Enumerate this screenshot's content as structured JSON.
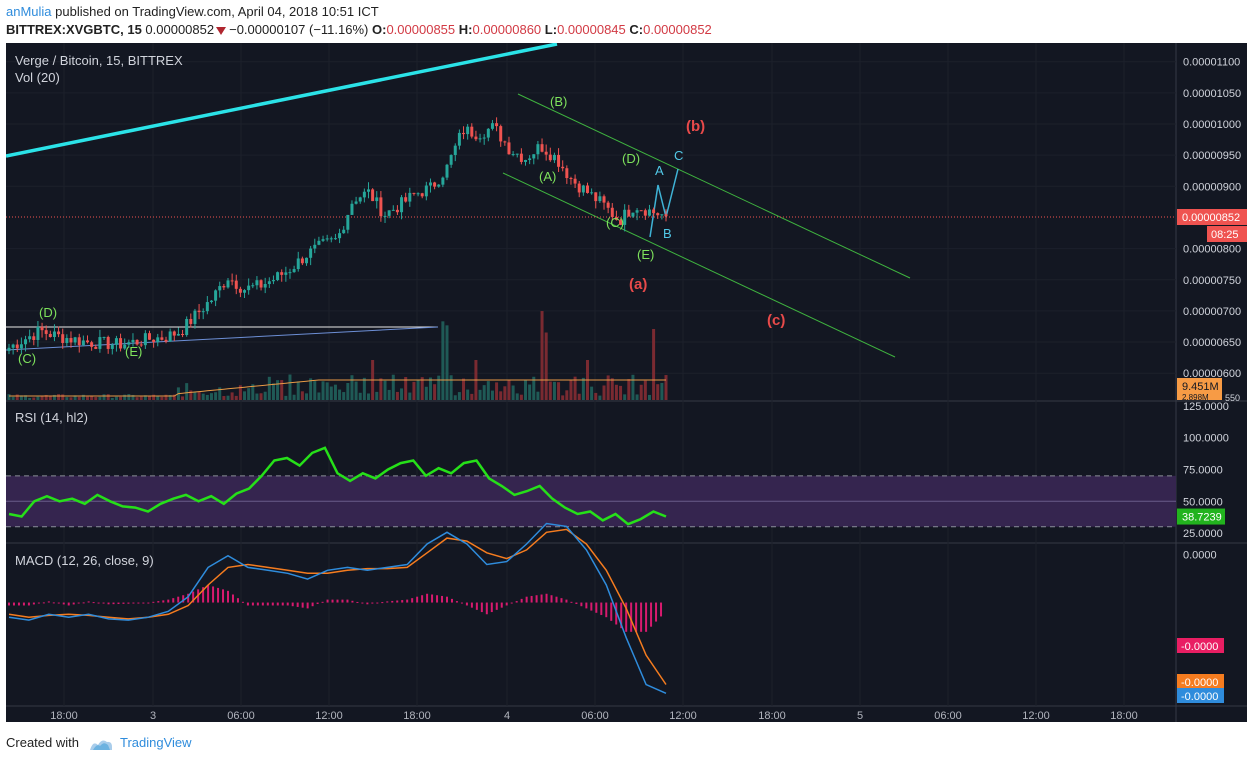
{
  "header": {
    "author": "anMulia",
    "published": "published on TradingView.com, April 04, 2018 10:51 ICT",
    "symbol": "BITTREX:XVGBTC, 15",
    "last": "0.00000852",
    "change": "−0.00000107 (−11.16%)",
    "o_label": "O:",
    "o_value": "0.00000855",
    "h_label": "H:",
    "h_value": "0.00000860",
    "l_label": "L:",
    "l_value": "0.00000845",
    "c_label": "C:",
    "c_value": "0.00000852"
  },
  "footer": {
    "created_with": "Created with",
    "brand": "TradingView"
  },
  "colors": {
    "background": "#131722",
    "up": "#26a69a",
    "down": "#ef5350",
    "trendline": "#2be3e8",
    "channel": "#3fb33f",
    "rsi": "#26e019",
    "rsi_band": "#35254f",
    "macd": "#2f8cdc",
    "signal": "#f57c1f",
    "hist": "#d81a6e",
    "vol_ma": "#e89a45"
  },
  "chart_data": [
    {
      "type": "candlestick",
      "panel": "price",
      "title": "Verge / Bitcoin, 15, BITTREX",
      "secondary_title": "Vol (20)",
      "x_axis_ticks": [
        "18:00",
        "3",
        "06:00",
        "12:00",
        "18:00",
        "4",
        "06:00",
        "12:00",
        "18:00",
        "5",
        "06:00",
        "12:00",
        "18:00"
      ],
      "y_axis_ticks": [
        "0.00001100",
        "0.00001050",
        "0.00001000",
        "0.00000950",
        "0.00000900",
        "0.00000800",
        "0.00000750",
        "0.00000700",
        "0.00000650",
        "0.00000600"
      ],
      "y_range": [
        5.57e-06,
        1.13e-05
      ],
      "last_price_label": "0.00000852",
      "countdown_label": "08:25",
      "volume_label": "9.451M",
      "volume_label_2": "2.898M",
      "partial_tick": "550",
      "price_path": [
        6.41e-06,
        6.55e-06,
        6.68e-06,
        6.6e-06,
        6.55e-06,
        6.5e-06,
        6.48e-06,
        6.46e-06,
        6.5e-06,
        6.55e-06,
        6.58e-06,
        6.68e-06,
        6.95e-06,
        7.2e-06,
        7.55e-06,
        7.35e-06,
        7.4e-06,
        7.52e-06,
        7.68e-06,
        7.9e-06,
        8.05e-06,
        8.15e-06,
        8.8e-06,
        8.9e-06,
        8.55e-06,
        8.7e-06,
        8.88e-06,
        8.98e-06,
        9.3e-06,
        9.9e-06,
        9.85e-06,
        9.95e-06,
        9.6e-06,
        9.45e-06,
        9.65e-06,
        9.45e-06,
        9.1e-06,
        8.9e-06,
        8.7e-06,
        8.45e-06,
        8.7e-06,
        8.6e-06,
        8.52e-06
      ],
      "annotations": [
        {
          "text": "(D)",
          "role": "wave-label"
        },
        {
          "text": "(C)",
          "role": "wave-label"
        },
        {
          "text": "(E)",
          "role": "wave-label"
        },
        {
          "text": "(B)",
          "role": "wave-label"
        },
        {
          "text": "(A)",
          "role": "wave-label"
        },
        {
          "text": "(D)",
          "role": "wave-label"
        },
        {
          "text": "(C)",
          "role": "wave-label"
        },
        {
          "text": "(E)",
          "role": "wave-label"
        },
        {
          "text": "A",
          "role": "sub-wave"
        },
        {
          "text": "B",
          "role": "sub-wave"
        },
        {
          "text": "C",
          "role": "sub-wave"
        },
        {
          "text": "(b)",
          "role": "projection"
        },
        {
          "text": "(a)",
          "role": "projection"
        },
        {
          "text": "(c)",
          "role": "projection"
        }
      ]
    },
    {
      "type": "line",
      "panel": "rsi",
      "title": "RSI (14, hl2)",
      "y_axis_ticks": [
        "125.0000",
        "100.0000",
        "75.0000",
        "50.0000",
        "25.0000"
      ],
      "y_range": [
        18,
        128
      ],
      "band": [
        30,
        70
      ],
      "last_value_label": "38.7239",
      "values": [
        40,
        38,
        50,
        54,
        50,
        52,
        48,
        55,
        50,
        46,
        45,
        42,
        48,
        52,
        55,
        50,
        54,
        48,
        56,
        60,
        70,
        82,
        84,
        78,
        88,
        92,
        72,
        66,
        72,
        68,
        75,
        80,
        82,
        70,
        76,
        72,
        80,
        82,
        68,
        62,
        55,
        58,
        62,
        52,
        45,
        40,
        42,
        35,
        40,
        32,
        36,
        42,
        38
      ]
    },
    {
      "type": "line",
      "panel": "macd",
      "title": "MACD (12, 26, close, 9)",
      "y_axis_ticks": [
        "0.0000"
      ],
      "y_range": [
        -1.75e-07,
        1e-07
      ],
      "values_labels": [
        "-0.0000",
        "-0.0000",
        "-0.0000"
      ],
      "macd": [
        -0.025,
        -0.03,
        -0.02,
        -0.025,
        -0.02,
        -0.028,
        -0.03,
        -0.025,
        -0.015,
        0.01,
        0.06,
        0.08,
        0.06,
        0.055,
        0.05,
        0.04,
        0.055,
        0.06,
        0.055,
        0.06,
        0.065,
        0.1,
        0.12,
        0.1,
        0.065,
        0.07,
        0.1,
        0.135,
        0.13,
        0.09,
        0.03,
        -0.06,
        -0.14,
        -0.155
      ],
      "signal": [
        -0.02,
        -0.025,
        -0.022,
        -0.02,
        -0.022,
        -0.025,
        -0.028,
        -0.025,
        -0.02,
        -0.005,
        0.03,
        0.06,
        0.065,
        0.06,
        0.055,
        0.05,
        0.05,
        0.055,
        0.058,
        0.058,
        0.06,
        0.085,
        0.11,
        0.105,
        0.085,
        0.075,
        0.09,
        0.12,
        0.125,
        0.1,
        0.055,
        -0.01,
        -0.09,
        -0.14
      ],
      "histogram": [
        -0.005,
        -0.005,
        0.002,
        -0.005,
        0.002,
        -0.003,
        -0.002,
        0,
        0.005,
        0.015,
        0.03,
        0.02,
        -0.005,
        -0.005,
        -0.005,
        -0.01,
        0.005,
        0.005,
        -0.003,
        0.002,
        0.005,
        0.015,
        0.01,
        -0.005,
        -0.02,
        -0.005,
        0.01,
        0.015,
        0.005,
        -0.01,
        -0.025,
        -0.05,
        -0.05,
        -0.015
      ]
    }
  ]
}
